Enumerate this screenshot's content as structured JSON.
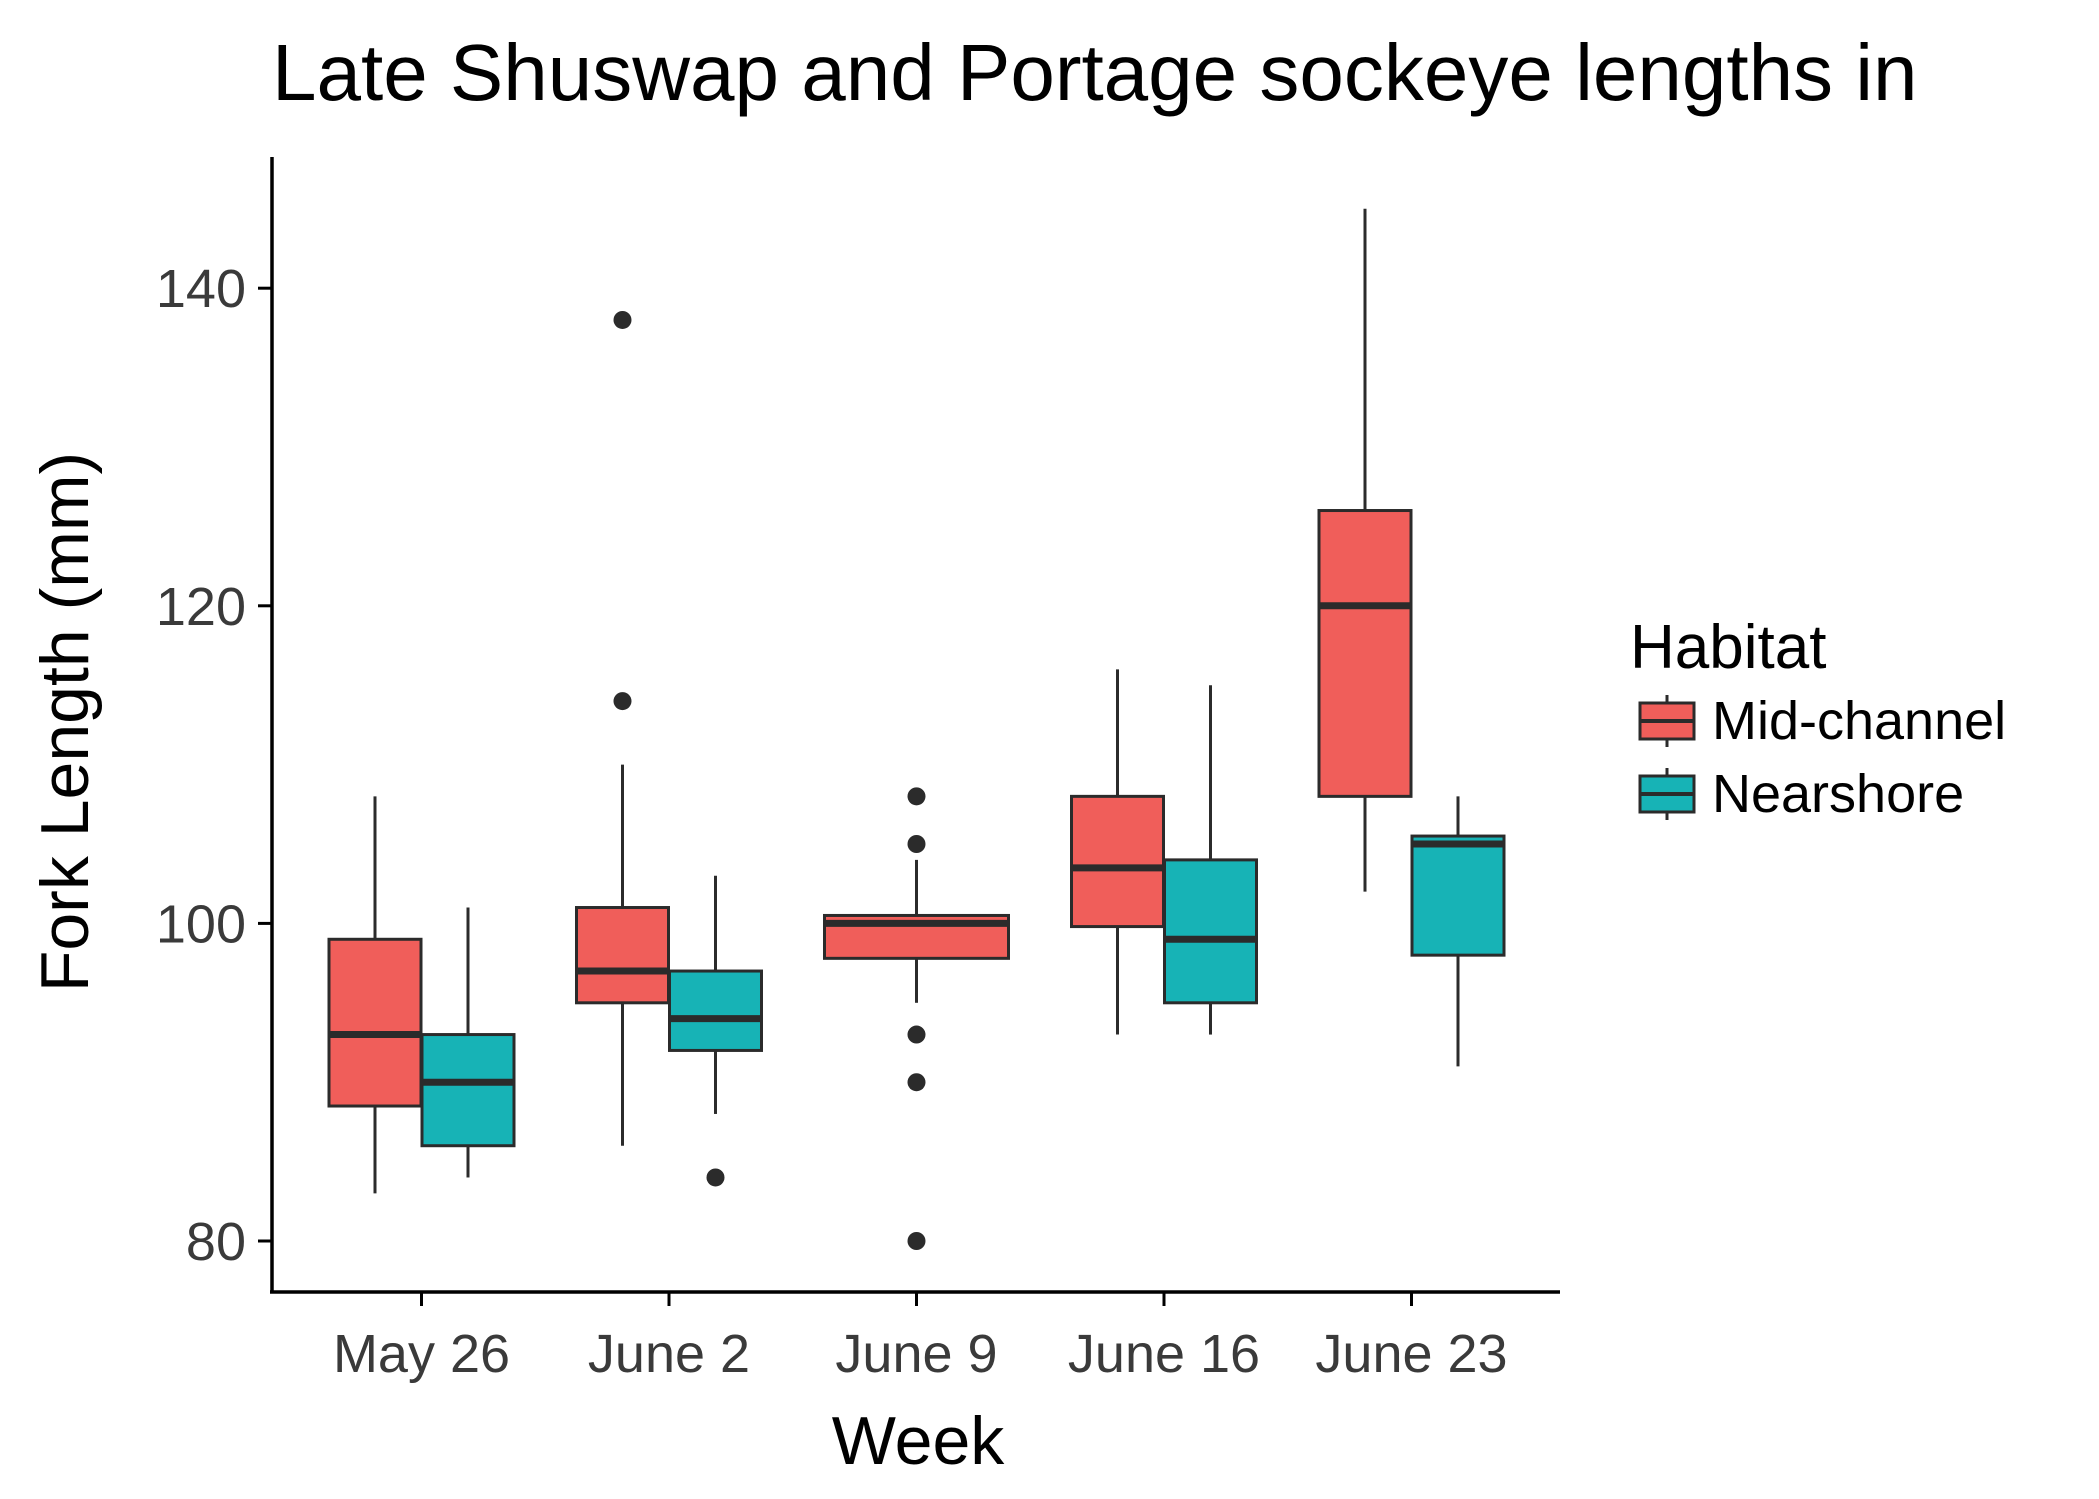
{
  "chart_data": {
    "type": "boxplot",
    "title": "Late Shuswap and Portage sockeye lengths in",
    "xlabel": "Week",
    "ylabel": "Fork Length (mm)",
    "categories": [
      "May 26",
      "June 2",
      "June 9",
      "June 16",
      "June 23"
    ],
    "yticks": [
      80,
      100,
      120,
      140
    ],
    "ylim": [
      76.7,
      148.3
    ],
    "grid": false,
    "legend": {
      "title": "Habitat",
      "position": "right"
    },
    "series": [
      {
        "name": "Mid-channel",
        "color": "#F05E5A",
        "boxes": [
          {
            "category": "May 26",
            "whisker_low": 83,
            "q1": 88.5,
            "median": 93,
            "q3": 99,
            "whisker_high": 108,
            "outliers": []
          },
          {
            "category": "June 2",
            "whisker_low": 86,
            "q1": 95,
            "median": 97,
            "q3": 101,
            "whisker_high": 110,
            "outliers": [
              114,
              138
            ]
          },
          {
            "category": "June 9",
            "whisker_low": 95,
            "q1": 97.8,
            "median": 100,
            "q3": 100.5,
            "whisker_high": 104,
            "outliers": [
              108,
              105,
              93,
              90,
              80
            ]
          },
          {
            "category": "June 16",
            "whisker_low": 93,
            "q1": 99.8,
            "median": 103.5,
            "q3": 108,
            "whisker_high": 116,
            "outliers": []
          },
          {
            "category": "June 23",
            "whisker_low": 102,
            "q1": 108,
            "median": 120,
            "q3": 126,
            "whisker_high": 145,
            "outliers": []
          }
        ]
      },
      {
        "name": "Nearshore",
        "color": "#17B3B6",
        "boxes": [
          {
            "category": "May 26",
            "whisker_low": 84,
            "q1": 86,
            "median": 90,
            "q3": 93,
            "whisker_high": 101,
            "outliers": []
          },
          {
            "category": "June 2",
            "whisker_low": 88,
            "q1": 92,
            "median": 94,
            "q3": 97,
            "whisker_high": 103,
            "outliers": [
              84
            ]
          },
          {
            "category": "June 16",
            "whisker_low": 93,
            "q1": 95,
            "median": 99,
            "q3": 104,
            "whisker_high": 115,
            "outliers": []
          },
          {
            "category": "June 23",
            "whisker_low": 91,
            "q1": 98,
            "median": 105,
            "q3": 105.5,
            "whisker_high": 108,
            "outliers": []
          }
        ]
      }
    ]
  },
  "colors": {
    "axis_line": "#000000",
    "box_outline": "#2b2b2b",
    "tick_text": "#3a3a3a"
  }
}
